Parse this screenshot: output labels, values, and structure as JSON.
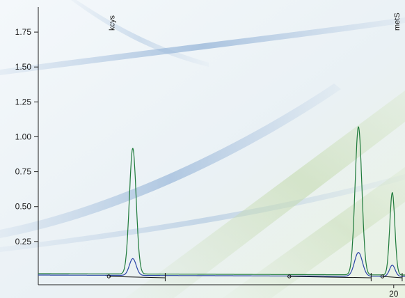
{
  "chart_data": {
    "type": "line",
    "title": "",
    "xlabel": "",
    "ylabel": "",
    "xlim": [
      7.4,
      20.4
    ],
    "ylim": [
      -0.02,
      1.93
    ],
    "y_ticks": [
      0.25,
      0.5,
      0.75,
      1.0,
      1.25,
      1.5,
      1.75
    ],
    "y_tick_labels": [
      "0.25",
      "0.50",
      "0.75",
      "1.00",
      "1.25",
      "1.50",
      "1.75"
    ],
    "x_ticks": [
      20
    ],
    "x_tick_labels": [
      "20"
    ],
    "grid": false,
    "legend": "none",
    "background": "decorative light gradient with blue and green swooshes",
    "peak_labels": [
      {
        "text": "kcys",
        "x": 10.0
      },
      {
        "text": "metS",
        "x": 20.1
      }
    ],
    "series": [
      {
        "color": "#1e7a3a",
        "baseline": 0.02,
        "peaks": [
          {
            "x": 10.75,
            "height": 0.9,
            "width": 0.12
          },
          {
            "x": 18.75,
            "height": 1.06,
            "width": 0.12
          },
          {
            "x": 19.95,
            "height": 0.59,
            "width": 0.09
          }
        ]
      },
      {
        "color": "#2b44a6",
        "baseline": 0.01,
        "peaks": [
          {
            "x": 10.75,
            "height": 0.12,
            "width": 0.12
          },
          {
            "x": 18.75,
            "height": 0.17,
            "width": 0.14
          },
          {
            "x": 19.95,
            "height": 0.08,
            "width": 0.1
          }
        ]
      }
    ],
    "integration_baselines": [
      {
        "x": [
          9.9,
          11.9
        ]
      },
      {
        "x": [
          16.3,
          19.2
        ]
      },
      {
        "x": [
          19.6,
          20.3
        ]
      }
    ]
  }
}
